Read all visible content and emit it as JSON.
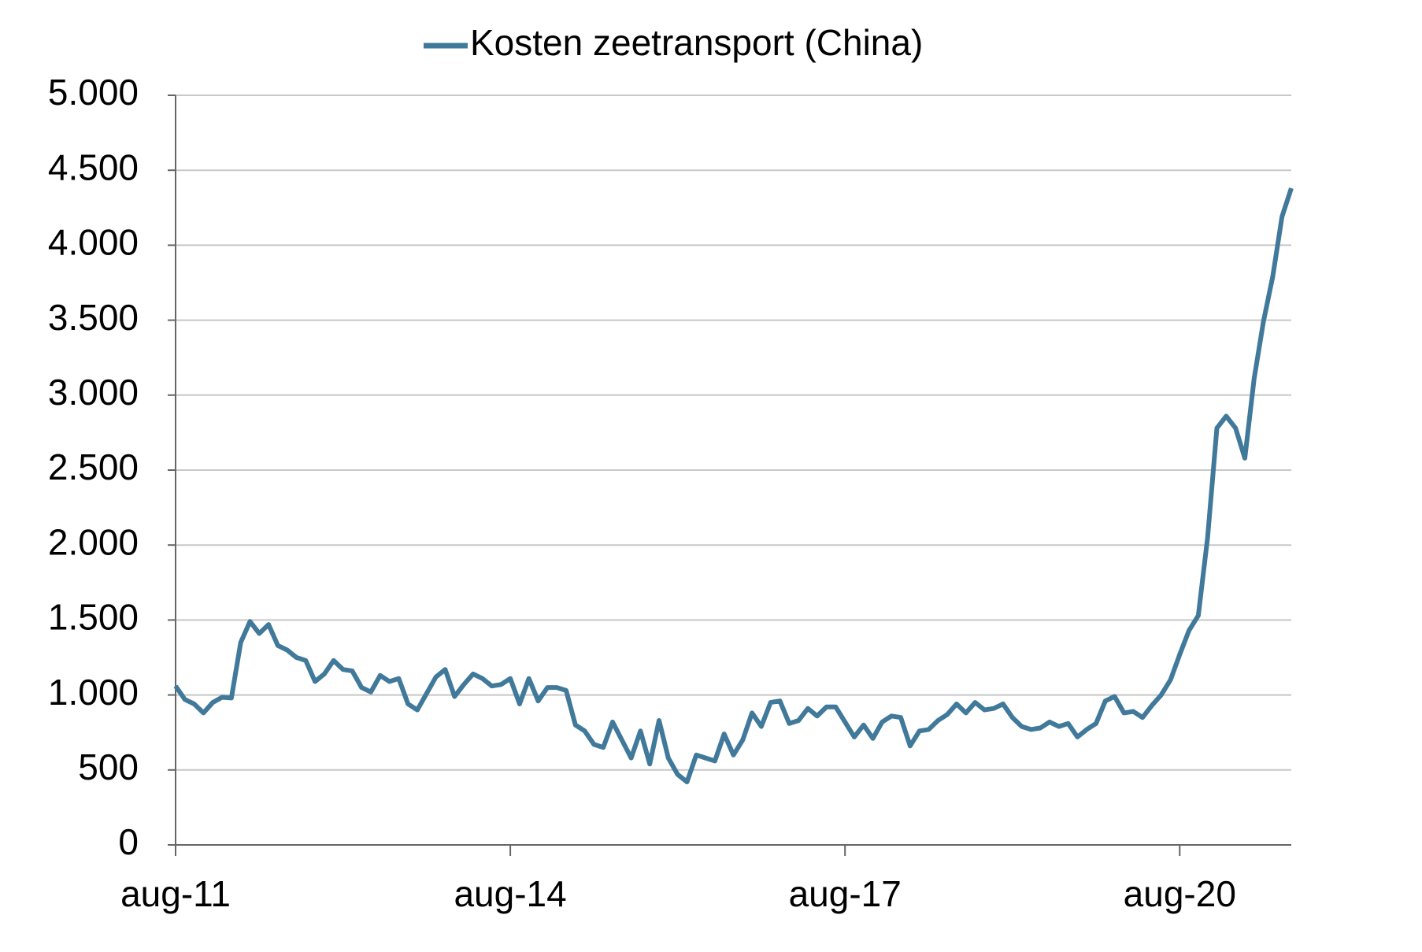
{
  "chart_data": {
    "type": "line",
    "series": [
      {
        "name": "Kosten zeetransport (China)",
        "color": "#41799b",
        "values": [
          1060,
          970,
          940,
          880,
          950,
          985,
          980,
          1350,
          1490,
          1410,
          1470,
          1330,
          1300,
          1250,
          1230,
          1090,
          1140,
          1230,
          1170,
          1160,
          1050,
          1020,
          1130,
          1090,
          1110,
          940,
          900,
          1010,
          1120,
          1170,
          990,
          1070,
          1140,
          1110,
          1060,
          1070,
          1110,
          940,
          1110,
          960,
          1050,
          1050,
          1030,
          800,
          760,
          670,
          650,
          820,
          700,
          580,
          760,
          540,
          830,
          580,
          470,
          420,
          600,
          580,
          560,
          740,
          600,
          700,
          880,
          790,
          950,
          960,
          810,
          830,
          910,
          860,
          920,
          920,
          820,
          720,
          800,
          710,
          820,
          860,
          850,
          660,
          760,
          770,
          830,
          870,
          940,
          880,
          950,
          900,
          910,
          940,
          850,
          790,
          770,
          780,
          820,
          790,
          810,
          720,
          770,
          810,
          960,
          990,
          880,
          890,
          850,
          930,
          1000,
          1100,
          1270,
          1430,
          1530,
          2050,
          2780,
          2860,
          2780,
          2580,
          3110,
          3490,
          3790,
          4190,
          4380
        ]
      }
    ],
    "categories": [
      "aug-11",
      null,
      null,
      null,
      null,
      null,
      null,
      null,
      null,
      null,
      null,
      null,
      null,
      null,
      null,
      null,
      null,
      null,
      null,
      null,
      null,
      null,
      null,
      null,
      null,
      null,
      null,
      null,
      null,
      null,
      null,
      null,
      null,
      null,
      null,
      null,
      "aug-14",
      null,
      null,
      null,
      null,
      null,
      null,
      null,
      null,
      null,
      null,
      null,
      null,
      null,
      null,
      null,
      null,
      null,
      null,
      null,
      null,
      null,
      null,
      null,
      null,
      null,
      null,
      null,
      null,
      null,
      null,
      null,
      null,
      null,
      null,
      null,
      "aug-17",
      null,
      null,
      null,
      null,
      null,
      null,
      null,
      null,
      null,
      null,
      null,
      null,
      null,
      null,
      null,
      null,
      null,
      null,
      null,
      null,
      null,
      null,
      null,
      null,
      null,
      null,
      null,
      null,
      null,
      null,
      null,
      null,
      null,
      null,
      null,
      "aug-20",
      null,
      null,
      null,
      null,
      null,
      null,
      null,
      null,
      null,
      null,
      null,
      null
    ],
    "ylim": [
      0,
      5000
    ],
    "yticks": [
      0,
      500,
      {
        "value": 1000,
        "label": "1.000"
      },
      {
        "value": 1500,
        "label": "1.500"
      },
      {
        "value": 2000,
        "label": "2.000"
      },
      {
        "value": 2500,
        "label": "2.500"
      },
      {
        "value": 3000,
        "label": "3.000"
      },
      {
        "value": 3500,
        "label": "3.500"
      },
      {
        "value": 4000,
        "label": "4.000"
      },
      {
        "value": 4500,
        "label": "4.500"
      },
      {
        "value": 5000,
        "label": "5.000"
      }
    ],
    "grid": true,
    "legend": "top"
  }
}
